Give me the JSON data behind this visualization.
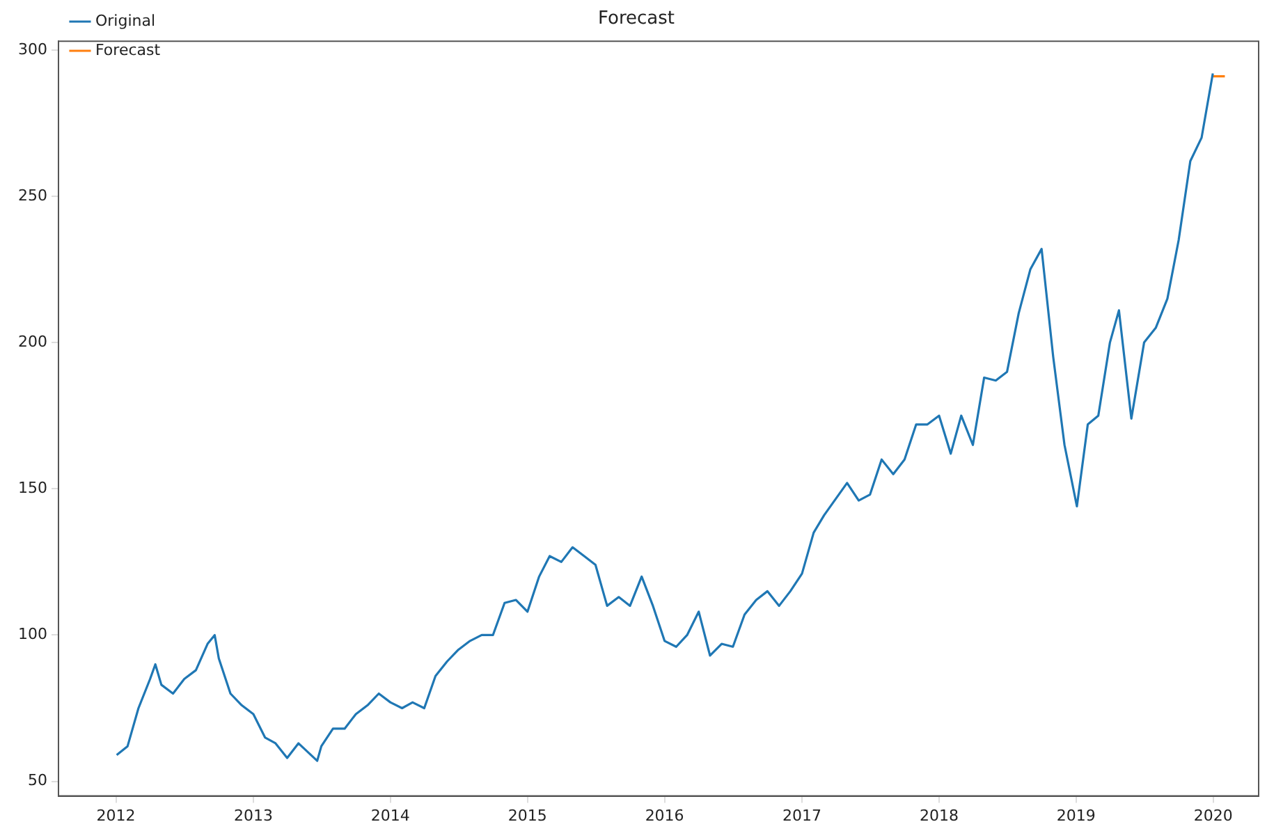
{
  "chart_data": {
    "type": "line",
    "title": "Forecast",
    "xlim": [
      "2011-08",
      "2020-05"
    ],
    "ylim": [
      45,
      303
    ],
    "xticks": [
      "2012",
      "2013",
      "2014",
      "2015",
      "2016",
      "2017",
      "2018",
      "2019",
      "2020"
    ],
    "yticks": [
      50,
      100,
      150,
      200,
      250,
      300
    ],
    "grid": false,
    "legend": "top left",
    "marker": "none",
    "line_style": "solid",
    "series": [
      {
        "name": "Original",
        "color": "#1f77b4",
        "x": [
          "2012-01-03",
          "2012-02-01",
          "2012-03-01",
          "2012-04-01",
          "2012-04-15",
          "2012-05-01",
          "2012-06-01",
          "2012-07-01",
          "2012-08-01",
          "2012-09-01",
          "2012-09-20",
          "2012-10-01",
          "2012-11-01",
          "2012-12-01",
          "2013-01-01",
          "2013-02-01",
          "2013-03-01",
          "2013-04-01",
          "2013-05-01",
          "2013-06-20",
          "2013-07-01",
          "2013-08-01",
          "2013-09-01",
          "2013-10-01",
          "2013-11-01",
          "2013-12-01",
          "2014-01-01",
          "2014-02-01",
          "2014-03-01",
          "2014-04-01",
          "2014-05-01",
          "2014-06-01",
          "2014-07-01",
          "2014-08-01",
          "2014-09-01",
          "2014-10-01",
          "2014-11-01",
          "2014-12-01",
          "2015-01-01",
          "2015-02-01",
          "2015-03-01",
          "2015-04-01",
          "2015-05-01",
          "2015-06-01",
          "2015-07-01",
          "2015-08-01",
          "2015-09-01",
          "2015-10-01",
          "2015-11-01",
          "2015-12-01",
          "2016-01-01",
          "2016-02-01",
          "2016-03-01",
          "2016-04-01",
          "2016-05-01",
          "2016-06-01",
          "2016-07-01",
          "2016-08-01",
          "2016-09-01",
          "2016-10-01",
          "2016-11-01",
          "2016-12-01",
          "2017-01-01",
          "2017-02-01",
          "2017-03-01",
          "2017-05-01",
          "2017-06-01",
          "2017-07-01",
          "2017-08-01",
          "2017-09-01",
          "2017-10-01",
          "2017-11-01",
          "2017-12-01",
          "2018-01-01",
          "2018-02-01",
          "2018-03-01",
          "2018-04-01",
          "2018-05-01",
          "2018-06-01",
          "2018-07-01",
          "2018-08-01",
          "2018-09-01",
          "2018-10-01",
          "2018-11-01",
          "2018-12-01",
          "2019-01-03",
          "2019-02-01",
          "2019-03-01",
          "2019-04-01",
          "2019-04-25",
          "2019-05-28",
          "2019-07-01",
          "2019-08-01",
          "2019-09-01",
          "2019-10-01",
          "2019-11-01",
          "2019-12-01",
          "2019-12-31"
        ],
        "values": [
          59,
          62,
          75,
          85,
          90,
          83,
          80,
          85,
          88,
          97,
          100,
          92,
          80,
          76,
          73,
          65,
          63,
          58,
          63,
          57,
          62,
          68,
          68,
          73,
          76,
          80,
          77,
          75,
          77,
          75,
          86,
          91,
          95,
          98,
          100,
          100,
          111,
          112,
          108,
          120,
          127,
          125,
          130,
          127,
          124,
          110,
          113,
          110,
          120,
          110,
          98,
          96,
          100,
          108,
          93,
          97,
          96,
          107,
          112,
          115,
          110,
          115,
          121,
          135,
          141,
          152,
          146,
          148,
          160,
          155,
          160,
          172,
          172,
          175,
          162,
          175,
          165,
          188,
          187,
          190,
          210,
          225,
          232,
          195,
          165,
          144,
          172,
          175,
          200,
          211,
          174,
          200,
          205,
          215,
          235,
          262,
          270,
          292
        ]
      },
      {
        "name": "Forecast",
        "color": "#ff7f0e",
        "x": [
          "2020-01-01",
          "2020-02-01"
        ],
        "values": [
          291,
          291
        ]
      }
    ]
  }
}
